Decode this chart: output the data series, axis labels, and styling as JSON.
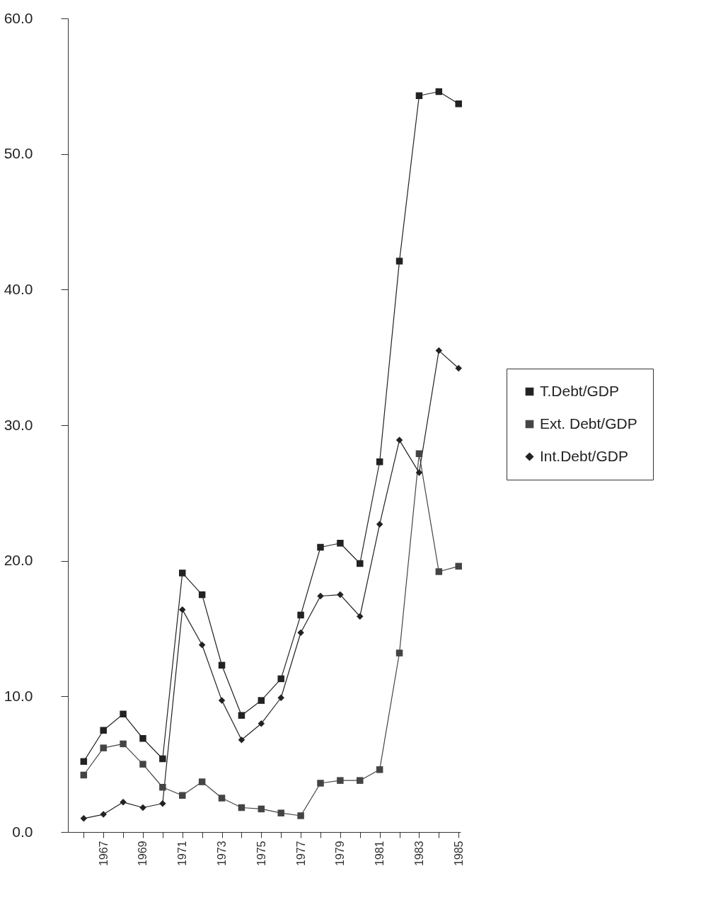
{
  "chart_data": {
    "type": "line",
    "x": [
      1966,
      1967,
      1968,
      1969,
      1970,
      1971,
      1972,
      1973,
      1974,
      1975,
      1976,
      1977,
      1978,
      1979,
      1980,
      1981,
      1982,
      1983,
      1984,
      1985
    ],
    "series": [
      {
        "name": "T.Debt/GDP",
        "color": "#222222",
        "marker": "square",
        "values": [
          5.2,
          7.5,
          8.7,
          6.9,
          5.4,
          19.1,
          17.5,
          12.3,
          8.6,
          9.7,
          11.3,
          16.0,
          21.0,
          21.3,
          19.8,
          27.3,
          42.1,
          54.3,
          54.6,
          53.7
        ]
      },
      {
        "name": "Ext. Debt/GDP",
        "color": "#444444",
        "marker": "square",
        "values": [
          4.2,
          6.2,
          6.5,
          5.0,
          3.3,
          2.7,
          3.7,
          2.5,
          1.8,
          1.7,
          1.4,
          1.2,
          3.6,
          3.8,
          3.8,
          4.6,
          13.2,
          27.9,
          19.2,
          19.6
        ]
      },
      {
        "name": "Int.Debt/GDP",
        "color": "#222222",
        "marker": "diamond",
        "values": [
          1.0,
          1.3,
          2.2,
          1.8,
          2.1,
          16.4,
          13.8,
          9.7,
          6.8,
          8.0,
          9.9,
          14.7,
          17.4,
          17.5,
          15.9,
          22.7,
          28.9,
          26.5,
          35.5,
          34.2
        ]
      }
    ],
    "xlim": [
      1965.2,
      1985.1
    ],
    "xticks": [
      {
        "value": 1966,
        "label": null
      },
      1967,
      {
        "value": 1968,
        "label": null
      },
      1969,
      {
        "value": 1970,
        "label": null
      },
      1971,
      {
        "value": 1972,
        "label": null
      },
      1973,
      {
        "value": 1974,
        "label": null
      },
      1975,
      {
        "value": 1976,
        "label": null
      },
      1977,
      {
        "value": 1978,
        "label": null
      },
      1979,
      {
        "value": 1980,
        "label": null
      },
      1981,
      {
        "value": 1982,
        "label": null
      },
      1983,
      {
        "value": 1984,
        "label": null
      },
      1985
    ],
    "ylim": [
      0,
      60
    ],
    "yticks": [
      {
        "value": 0,
        "label": "0.0"
      },
      {
        "value": 10,
        "label": "10.0"
      },
      {
        "value": 20,
        "label": "20.0"
      },
      {
        "value": 30,
        "label": "30.0"
      },
      {
        "value": 40,
        "label": "40.0"
      },
      {
        "value": 50,
        "label": "50.0"
      },
      {
        "value": 60,
        "label": "60.0"
      }
    ],
    "grid": false,
    "legend": "right",
    "line_style": "solid"
  }
}
